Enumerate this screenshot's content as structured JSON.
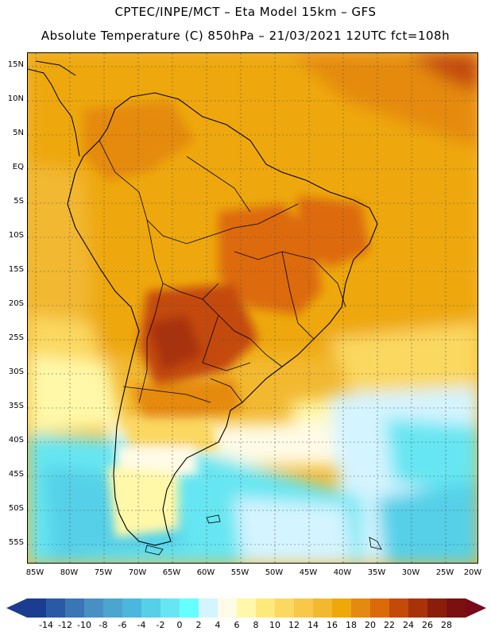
{
  "header": {
    "line1": "CPTEC/INPE/MCT –   Eta Model 15km – GFS",
    "line2": "Absolute Temperature (C) 850hPa – 21/03/2021 12UTC fct=108h"
  },
  "map": {
    "lat_labels": [
      "15N",
      "10N",
      "5N",
      "EQ",
      "5S",
      "10S",
      "15S",
      "20S",
      "25S",
      "30S",
      "35S",
      "40S",
      "45S",
      "50S",
      "55S"
    ],
    "lon_labels": [
      "85W",
      "80W",
      "75W",
      "70W",
      "65W",
      "60W",
      "55W",
      "50W",
      "45W",
      "40W",
      "35W",
      "30W",
      "25W",
      "20W"
    ]
  },
  "colorbar": {
    "labels": [
      "-14",
      "-12",
      "-10",
      "-8",
      "-6",
      "-4",
      "-2",
      "0",
      "2",
      "4",
      "6",
      "8",
      "10",
      "12",
      "14",
      "16",
      "18",
      "20",
      "22",
      "24",
      "26",
      "28"
    ],
    "colors": [
      "#1a3d8f",
      "#2a5aa6",
      "#3a76b6",
      "#4a8fc4",
      "#4aa6cf",
      "#4ab8dc",
      "#55d0e8",
      "#66e6f2",
      "#66ffff",
      "#d4f4ff",
      "#fffbe6",
      "#fff8a8",
      "#ffe97a",
      "#fbd860",
      "#f7c84a",
      "#f2b830",
      "#eea80a",
      "#e58a10",
      "#dd6a0a",
      "#c44a0a",
      "#a8320a",
      "#8a1e0a",
      "#7a1010"
    ]
  },
  "colors": {
    "tropics": "#eea80a",
    "warm_core": "#dd6a0a",
    "hot_core": "#c44a0a",
    "cool": "#fff8a8",
    "cold_ocean": "#55d0e8"
  }
}
